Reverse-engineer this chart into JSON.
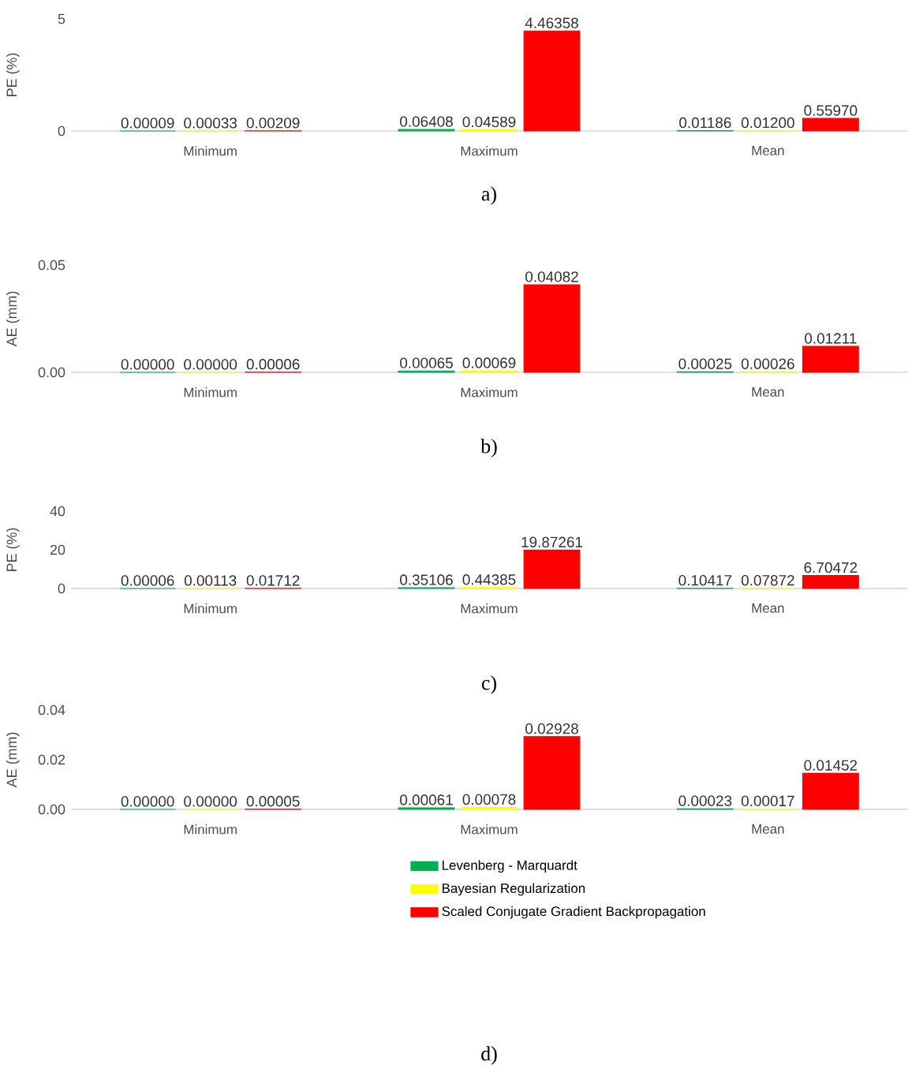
{
  "chart_data": [
    {
      "type": "bar",
      "title": "a)",
      "ylabel": "PE (%)",
      "categories": [
        "Minimum",
        "Maximum",
        "Mean"
      ],
      "ylim": [
        0,
        5
      ],
      "yticks": [
        0,
        5
      ],
      "series": [
        {
          "color": "#00b050",
          "values": [
            9e-05,
            0.06408,
            0.01186
          ],
          "value_labels": [
            "0.00009",
            "0.06408",
            "0.01186"
          ]
        },
        {
          "color": "#ffff00",
          "values": [
            0.00033,
            0.04589,
            0.012
          ],
          "value_labels": [
            "0.00033",
            "0.04589",
            "0.01200"
          ]
        },
        {
          "color": "#ff0000",
          "values": [
            0.00209,
            4.46358,
            0.5597
          ],
          "value_labels": [
            "0.00209",
            "4.46358",
            "0.55970"
          ]
        }
      ]
    },
    {
      "type": "bar",
      "title": "b)",
      "ylabel": "AE (mm)",
      "categories": [
        "Minimum",
        "Maximum",
        "Mean"
      ],
      "ylim": [
        0,
        0.05
      ],
      "yticks": [
        {
          "value": 0,
          "label": "0.00"
        },
        {
          "value": 0.05,
          "label": "0.05"
        }
      ],
      "series": [
        {
          "color": "#00b050",
          "values": [
            0,
            0.00065,
            0.00025
          ],
          "value_labels": [
            "0.00000",
            "0.00065",
            "0.00025"
          ]
        },
        {
          "color": "#ffff00",
          "values": [
            0,
            0.00069,
            0.00026
          ],
          "value_labels": [
            "0.00000",
            "0.00069",
            "0.00026"
          ]
        },
        {
          "color": "#ff0000",
          "values": [
            6e-05,
            0.04082,
            0.01211
          ],
          "value_labels": [
            "0.00006",
            "0.04082",
            "0.01211"
          ]
        }
      ]
    },
    {
      "type": "bar",
      "title": "c)",
      "ylabel": "PE (%)",
      "categories": [
        "Minimum",
        "Maximum",
        "Mean"
      ],
      "ylim": [
        0,
        40
      ],
      "yticks": [
        0,
        20,
        40
      ],
      "series": [
        {
          "color": "#00b050",
          "values": [
            6e-05,
            0.35106,
            0.10417
          ],
          "value_labels": [
            "0.00006",
            "0.35106",
            "0.10417"
          ]
        },
        {
          "color": "#ffff00",
          "values": [
            0.00113,
            0.44385,
            0.07872
          ],
          "value_labels": [
            "0.00113",
            "0.44385",
            "0.07872"
          ]
        },
        {
          "color": "#ff0000",
          "values": [
            0.01712,
            19.87261,
            6.70472
          ],
          "value_labels": [
            "0.01712",
            "19.87261",
            "6.70472"
          ]
        }
      ]
    },
    {
      "type": "bar",
      "title": "d)",
      "ylabel": "AE (mm)",
      "categories": [
        "Minimum",
        "Maximum",
        "Mean"
      ],
      "ylim": [
        0,
        0.04
      ],
      "yticks": [
        {
          "value": 0,
          "label": "0.00"
        },
        {
          "value": 0.02,
          "label": "0.02"
        },
        {
          "value": 0.04,
          "label": "0.04"
        }
      ],
      "legend": "bottom",
      "series": [
        {
          "name": "Levenberg - Marquardt",
          "color": "#00b050",
          "values": [
            0,
            0.00061,
            0.00023
          ],
          "value_labels": [
            "0.00000",
            "0.00061",
            "0.00023"
          ]
        },
        {
          "name": "Bayesian Regularization",
          "color": "#ffff00",
          "values": [
            0,
            0.00078,
            0.00017
          ],
          "value_labels": [
            "0.00000",
            "0.00078",
            "0.00017"
          ]
        },
        {
          "name": "Scaled Conjugate Gradient Backpropagation",
          "color": "#ff0000",
          "values": [
            5e-05,
            0.02928,
            0.01452
          ],
          "value_labels": [
            "0.00005",
            "0.02928",
            "0.01452"
          ]
        }
      ]
    }
  ]
}
